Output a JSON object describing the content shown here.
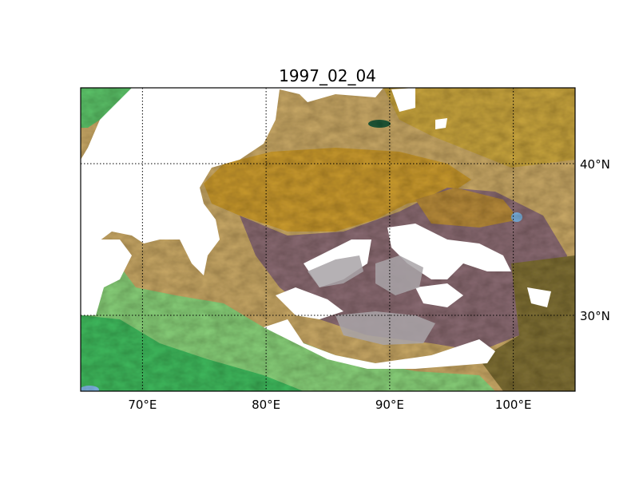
{
  "map": {
    "title": "1997_02_04",
    "extent": {
      "lon_min": 65,
      "lon_max": 105,
      "lat_min": 25,
      "lat_max": 45
    },
    "meridians": [
      {
        "lon": 70,
        "label": "70°E"
      },
      {
        "lon": 80,
        "label": "80°E"
      },
      {
        "lon": 90,
        "label": "90°E"
      },
      {
        "lon": 100,
        "label": "100°E"
      }
    ],
    "parallels": [
      {
        "lat": 30,
        "label": "30°N"
      },
      {
        "lat": 40,
        "label": "40°N"
      }
    ],
    "gridline_style": "dotted",
    "basemap": "shaded-relief",
    "masked_color": "#ffffff",
    "palette": {
      "lowland": "#4fbf6a",
      "plain": "#9fd68c",
      "desert": "#c9a23a",
      "foothill": "#b08a3c",
      "plateau": "#8a6a72",
      "highland": "#a9a4a8",
      "water": "#7fb7e8",
      "lake_dark": "#1f5a3a"
    }
  }
}
